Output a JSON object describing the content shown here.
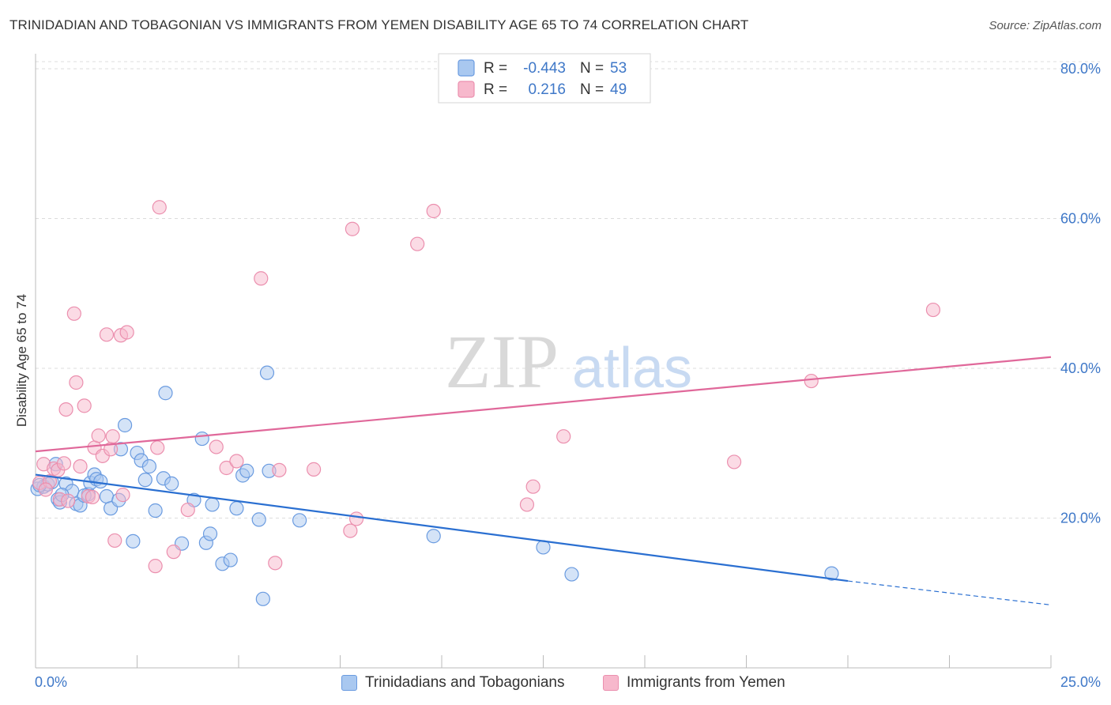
{
  "header": {
    "title": "TRINIDADIAN AND TOBAGONIAN VS IMMIGRANTS FROM YEMEN DISABILITY AGE 65 TO 74 CORRELATION CHART",
    "source": "Source: ZipAtlas.com"
  },
  "watermark": {
    "zip": "ZIP",
    "atlas": "atlas"
  },
  "colors": {
    "blue_fill": "#a9c8f0",
    "blue_stroke": "#6a9be0",
    "blue_line": "#2a6fd1",
    "pink_fill": "#f7b8cc",
    "pink_stroke": "#eb8fae",
    "pink_line": "#e0689a",
    "axis_text": "#3f78c8",
    "grid": "#dcdcdc"
  },
  "stats_legend": {
    "rows": [
      {
        "r_label": "R =",
        "r_value": "-0.443",
        "n_label": "N =",
        "n_value": "53",
        "series": "blue"
      },
      {
        "r_label": "R =",
        "r_value": "0.216",
        "n_label": "N =",
        "n_value": "49",
        "series": "pink"
      }
    ]
  },
  "chart_data": {
    "type": "scatter",
    "title": "TRINIDADIAN AND TOBAGONIAN VS IMMIGRANTS FROM YEMEN DISABILITY AGE 65 TO 74 CORRELATION CHART",
    "xlabel": "",
    "ylabel": "Disability Age 65 to 74",
    "xlim": [
      0,
      25
    ],
    "ylim": [
      0,
      82
    ],
    "x_tick_labels": [
      "0.0%",
      "25.0%"
    ],
    "y_ticks": [
      20,
      40,
      60,
      80
    ],
    "y_tick_labels": [
      "20.0%",
      "40.0%",
      "60.0%",
      "80.0%"
    ],
    "grid": true,
    "legend_position": "bottom",
    "series": [
      {
        "name": "Trinidadians and Tobagonians",
        "color": "blue",
        "r": -0.443,
        "n": 53,
        "trend": {
          "x0": 0,
          "y0": 25.8,
          "x1": 20,
          "y1": 11.6,
          "dash_to_x": 25,
          "dash_to_y": 8.4
        },
        "points": [
          [
            0.05,
            23.9
          ],
          [
            0.2,
            24.2
          ],
          [
            0.3,
            24.5
          ],
          [
            0.4,
            24.8
          ],
          [
            0.5,
            27.2
          ],
          [
            0.55,
            22.5
          ],
          [
            0.6,
            22.1
          ],
          [
            0.75,
            24.6
          ],
          [
            0.9,
            23.6
          ],
          [
            1.0,
            21.9
          ],
          [
            1.1,
            21.7
          ],
          [
            1.3,
            23.2
          ],
          [
            1.35,
            24.7
          ],
          [
            1.45,
            25.8
          ],
          [
            1.5,
            25.2
          ],
          [
            1.6,
            24.9
          ],
          [
            1.75,
            22.9
          ],
          [
            1.85,
            21.3
          ],
          [
            2.05,
            22.4
          ],
          [
            2.1,
            29.2
          ],
          [
            2.2,
            32.4
          ],
          [
            2.4,
            16.9
          ],
          [
            2.5,
            28.7
          ],
          [
            2.6,
            27.7
          ],
          [
            2.7,
            25.1
          ],
          [
            2.8,
            26.9
          ],
          [
            2.95,
            21.0
          ],
          [
            3.15,
            25.3
          ],
          [
            3.2,
            36.7
          ],
          [
            3.35,
            24.6
          ],
          [
            3.6,
            16.6
          ],
          [
            3.9,
            22.4
          ],
          [
            4.1,
            30.6
          ],
          [
            4.2,
            16.7
          ],
          [
            4.3,
            17.9
          ],
          [
            4.35,
            21.8
          ],
          [
            4.6,
            13.9
          ],
          [
            4.8,
            14.4
          ],
          [
            4.95,
            21.3
          ],
          [
            5.1,
            25.7
          ],
          [
            5.2,
            26.3
          ],
          [
            5.5,
            19.8
          ],
          [
            5.6,
            9.2
          ],
          [
            5.7,
            39.4
          ],
          [
            5.75,
            26.3
          ],
          [
            6.5,
            19.7
          ],
          [
            9.8,
            17.6
          ],
          [
            12.5,
            16.1
          ],
          [
            13.2,
            12.5
          ],
          [
            19.6,
            12.6
          ],
          [
            0.1,
            24.4
          ],
          [
            0.65,
            23.1
          ],
          [
            1.2,
            23.0
          ]
        ]
      },
      {
        "name": "Immigrants from Yemen",
        "color": "pink",
        "r": 0.216,
        "n": 49,
        "trend": {
          "x0": 0,
          "y0": 28.9,
          "x1": 25,
          "y1": 41.5
        },
        "points": [
          [
            0.1,
            24.7
          ],
          [
            0.2,
            27.2
          ],
          [
            0.35,
            24.9
          ],
          [
            0.45,
            26.6
          ],
          [
            0.55,
            26.4
          ],
          [
            0.6,
            22.5
          ],
          [
            0.7,
            27.3
          ],
          [
            0.75,
            34.5
          ],
          [
            0.8,
            22.3
          ],
          [
            0.95,
            47.3
          ],
          [
            1.0,
            38.1
          ],
          [
            1.1,
            26.9
          ],
          [
            1.2,
            35.0
          ],
          [
            1.3,
            22.9
          ],
          [
            1.4,
            22.8
          ],
          [
            1.45,
            29.4
          ],
          [
            1.55,
            31.0
          ],
          [
            1.65,
            28.3
          ],
          [
            1.75,
            44.5
          ],
          [
            1.85,
            29.2
          ],
          [
            1.9,
            30.9
          ],
          [
            1.95,
            17.0
          ],
          [
            2.1,
            44.4
          ],
          [
            2.15,
            23.1
          ],
          [
            2.25,
            44.8
          ],
          [
            2.95,
            13.6
          ],
          [
            3.0,
            29.4
          ],
          [
            3.05,
            61.5
          ],
          [
            3.4,
            15.5
          ],
          [
            3.75,
            21.1
          ],
          [
            4.45,
            29.5
          ],
          [
            4.7,
            26.7
          ],
          [
            4.95,
            27.6
          ],
          [
            5.55,
            52.0
          ],
          [
            5.9,
            14.0
          ],
          [
            6.0,
            26.4
          ],
          [
            6.85,
            26.5
          ],
          [
            7.75,
            18.3
          ],
          [
            7.8,
            58.6
          ],
          [
            7.9,
            19.9
          ],
          [
            9.4,
            56.6
          ],
          [
            9.8,
            61.0
          ],
          [
            12.1,
            21.8
          ],
          [
            12.25,
            24.2
          ],
          [
            13.0,
            30.9
          ],
          [
            17.2,
            27.5
          ],
          [
            19.1,
            38.3
          ],
          [
            22.1,
            47.8
          ],
          [
            0.25,
            23.8
          ]
        ]
      }
    ]
  }
}
